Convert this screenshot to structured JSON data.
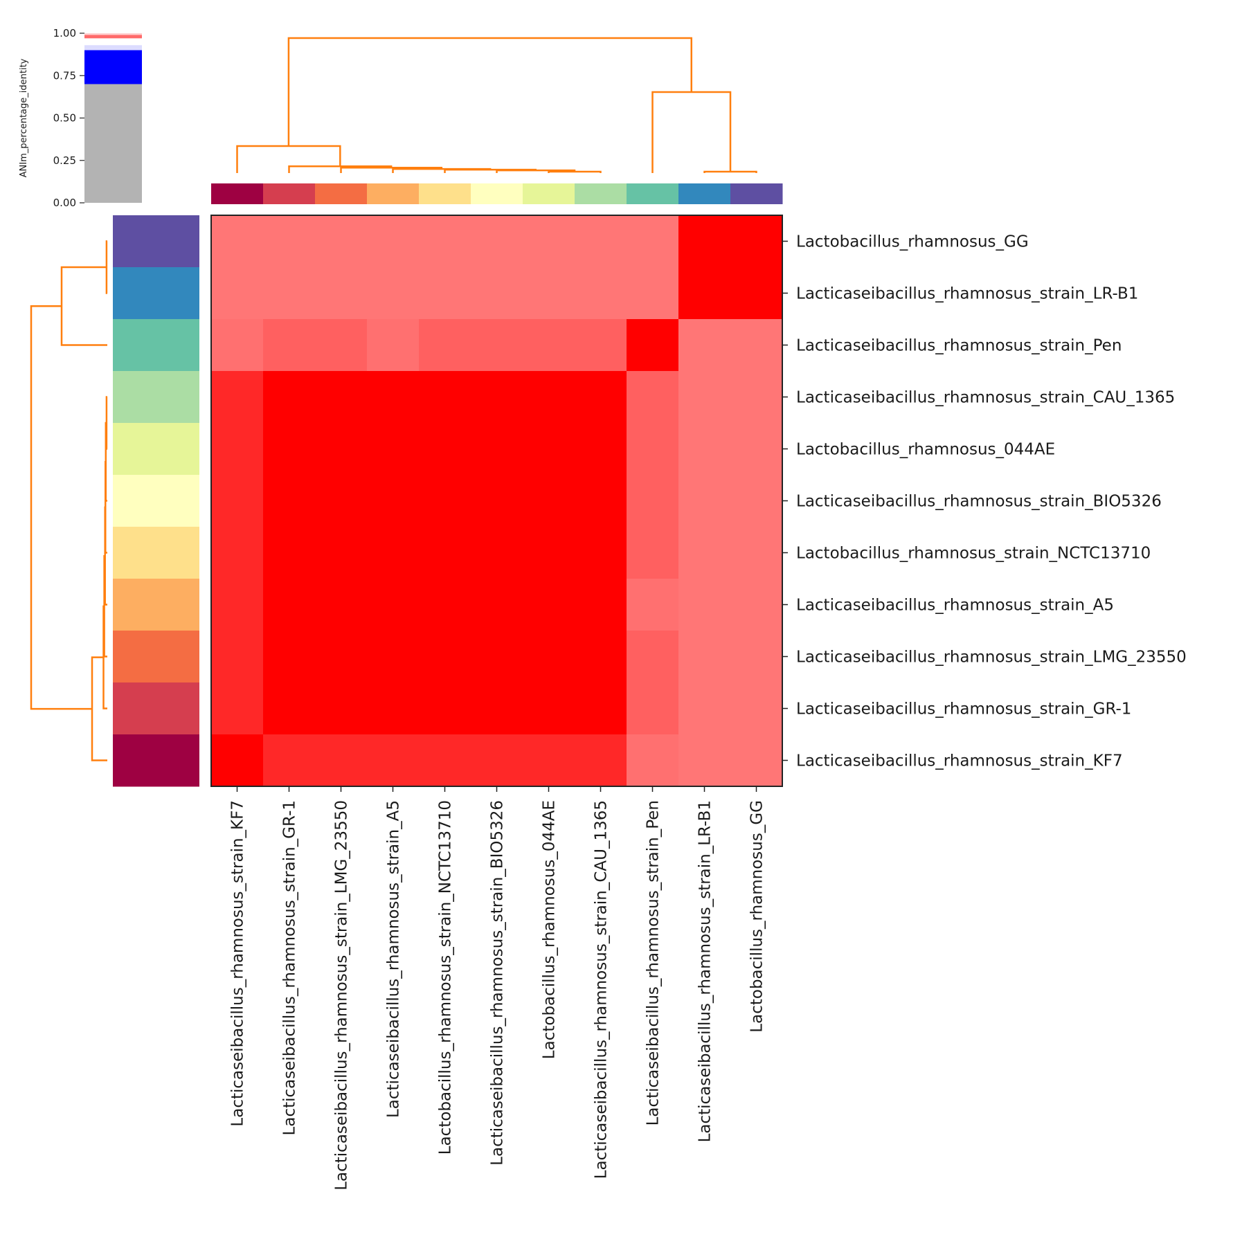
{
  "chart_data": {
    "type": "heatmap",
    "title": "",
    "colorbar": {
      "label": "ANIm_percentage_identity",
      "ticks": [
        "0.00",
        "0.25",
        "0.50",
        "0.75",
        "1.00"
      ],
      "tick_values": [
        0,
        0.25,
        0.5,
        0.75,
        1.0
      ],
      "segments": [
        {
          "from": 0.0,
          "to": 0.7,
          "color": "#b3b3b3"
        },
        {
          "from": 0.7,
          "to": 0.9,
          "color": "#0000ff"
        },
        {
          "from": 0.9,
          "to": 0.93,
          "color": "#dcdcff"
        },
        {
          "from": 0.93,
          "to": 0.97,
          "color": "#ffffff"
        },
        {
          "from": 0.97,
          "to": 0.99,
          "color": "#ff6a6a"
        },
        {
          "from": 0.99,
          "to": 1.0,
          "color": "#ffd0d0"
        }
      ]
    },
    "columns": [
      "Lacticaseibacillus_rhamnosus_strain_KF7",
      "Lacticaseibacillus_rhamnosus_strain_GR-1",
      "Lacticaseibacillus_rhamnosus_strain_LMG_23550",
      "Lacticaseibacillus_rhamnosus_strain_A5",
      "Lactobacillus_rhamnosus_strain_NCTC13710",
      "Lacticaseibacillus_rhamnosus_strain_BIO5326",
      "Lactobacillus_rhamnosus_044AE",
      "Lacticaseibacillus_rhamnosus_strain_CAU_1365",
      "Lacticaseibacillus_rhamnosus_strain_Pen",
      "Lacticaseibacillus_rhamnosus_strain_LR-B1",
      "Lactobacillus_rhamnosus_GG"
    ],
    "rows": [
      "Lactobacillus_rhamnosus_GG",
      "Lacticaseibacillus_rhamnosus_strain_LR-B1",
      "Lacticaseibacillus_rhamnosus_strain_Pen",
      "Lacticaseibacillus_rhamnosus_strain_CAU_1365",
      "Lactobacillus_rhamnosus_044AE",
      "Lacticaseibacillus_rhamnosus_strain_BIO5326",
      "Lactobacillus_rhamnosus_strain_NCTC13710",
      "Lacticaseibacillus_rhamnosus_strain_A5",
      "Lacticaseibacillus_rhamnosus_strain_LMG_23550",
      "Lacticaseibacillus_rhamnosus_strain_GR-1",
      "Lacticaseibacillus_rhamnosus_strain_KF7"
    ],
    "cell_colors": [
      [
        "#ff7676",
        "#ff7676",
        "#ff7676",
        "#ff7676",
        "#ff7676",
        "#ff7676",
        "#ff7676",
        "#ff7676",
        "#ff7676",
        "#ff0000",
        "#ff0000"
      ],
      [
        "#ff7676",
        "#ff7676",
        "#ff7676",
        "#ff7676",
        "#ff7676",
        "#ff7676",
        "#ff7676",
        "#ff7676",
        "#ff7676",
        "#ff0000",
        "#ff0000"
      ],
      [
        "#ff7070",
        "#ff6060",
        "#ff6060",
        "#ff7070",
        "#ff6060",
        "#ff6060",
        "#ff6060",
        "#ff6060",
        "#ff0000",
        "#ff7676",
        "#ff7676"
      ],
      [
        "#ff2828",
        "#ff0000",
        "#ff0000",
        "#ff0000",
        "#ff0000",
        "#ff0000",
        "#ff0000",
        "#ff0000",
        "#ff6060",
        "#ff7676",
        "#ff7676"
      ],
      [
        "#ff2828",
        "#ff0000",
        "#ff0000",
        "#ff0000",
        "#ff0000",
        "#ff0000",
        "#ff0000",
        "#ff0000",
        "#ff6060",
        "#ff7676",
        "#ff7676"
      ],
      [
        "#ff2828",
        "#ff0000",
        "#ff0000",
        "#ff0000",
        "#ff0000",
        "#ff0000",
        "#ff0000",
        "#ff0000",
        "#ff6060",
        "#ff7676",
        "#ff7676"
      ],
      [
        "#ff2828",
        "#ff0000",
        "#ff0000",
        "#ff0000",
        "#ff0000",
        "#ff0000",
        "#ff0000",
        "#ff0000",
        "#ff6060",
        "#ff7676",
        "#ff7676"
      ],
      [
        "#ff2828",
        "#ff0000",
        "#ff0000",
        "#ff0000",
        "#ff0000",
        "#ff0000",
        "#ff0000",
        "#ff0000",
        "#ff7070",
        "#ff7676",
        "#ff7676"
      ],
      [
        "#ff2828",
        "#ff0000",
        "#ff0000",
        "#ff0000",
        "#ff0000",
        "#ff0000",
        "#ff0000",
        "#ff0000",
        "#ff6060",
        "#ff7676",
        "#ff7676"
      ],
      [
        "#ff2828",
        "#ff0000",
        "#ff0000",
        "#ff0000",
        "#ff0000",
        "#ff0000",
        "#ff0000",
        "#ff0000",
        "#ff6060",
        "#ff7676",
        "#ff7676"
      ],
      [
        "#ff0000",
        "#ff2828",
        "#ff2828",
        "#ff2828",
        "#ff2828",
        "#ff2828",
        "#ff2828",
        "#ff2828",
        "#ff7070",
        "#ff7676",
        "#ff7676"
      ]
    ],
    "group_colors": [
      "#9e0142",
      "#d53e4f",
      "#f46d43",
      "#fdae61",
      "#fee08b",
      "#ffffbf",
      "#e6f598",
      "#abdda4",
      "#66c2a5",
      "#3288bd",
      "#5e4fa2"
    ],
    "dendrogram_color": "#ff7f0e",
    "dendrogram_merges": [
      {
        "a": 9,
        "b": 10,
        "height": 0.01
      },
      {
        "a": 6,
        "b": 7,
        "height": 0.01
      },
      {
        "a": 5,
        "b": "m1",
        "height": 0.02
      },
      {
        "a": 4,
        "b": "m2",
        "height": 0.025
      },
      {
        "a": 3,
        "b": "m3",
        "height": 0.03
      },
      {
        "a": 2,
        "b": "m4",
        "height": 0.04
      },
      {
        "a": 1,
        "b": "m5",
        "height": 0.05
      },
      {
        "a": 0,
        "b": "m6",
        "height": 0.2
      },
      {
        "a": 8,
        "b": "m0",
        "height": 0.6
      },
      {
        "a": "m7",
        "b": "m8",
        "height": 1.0
      }
    ]
  }
}
